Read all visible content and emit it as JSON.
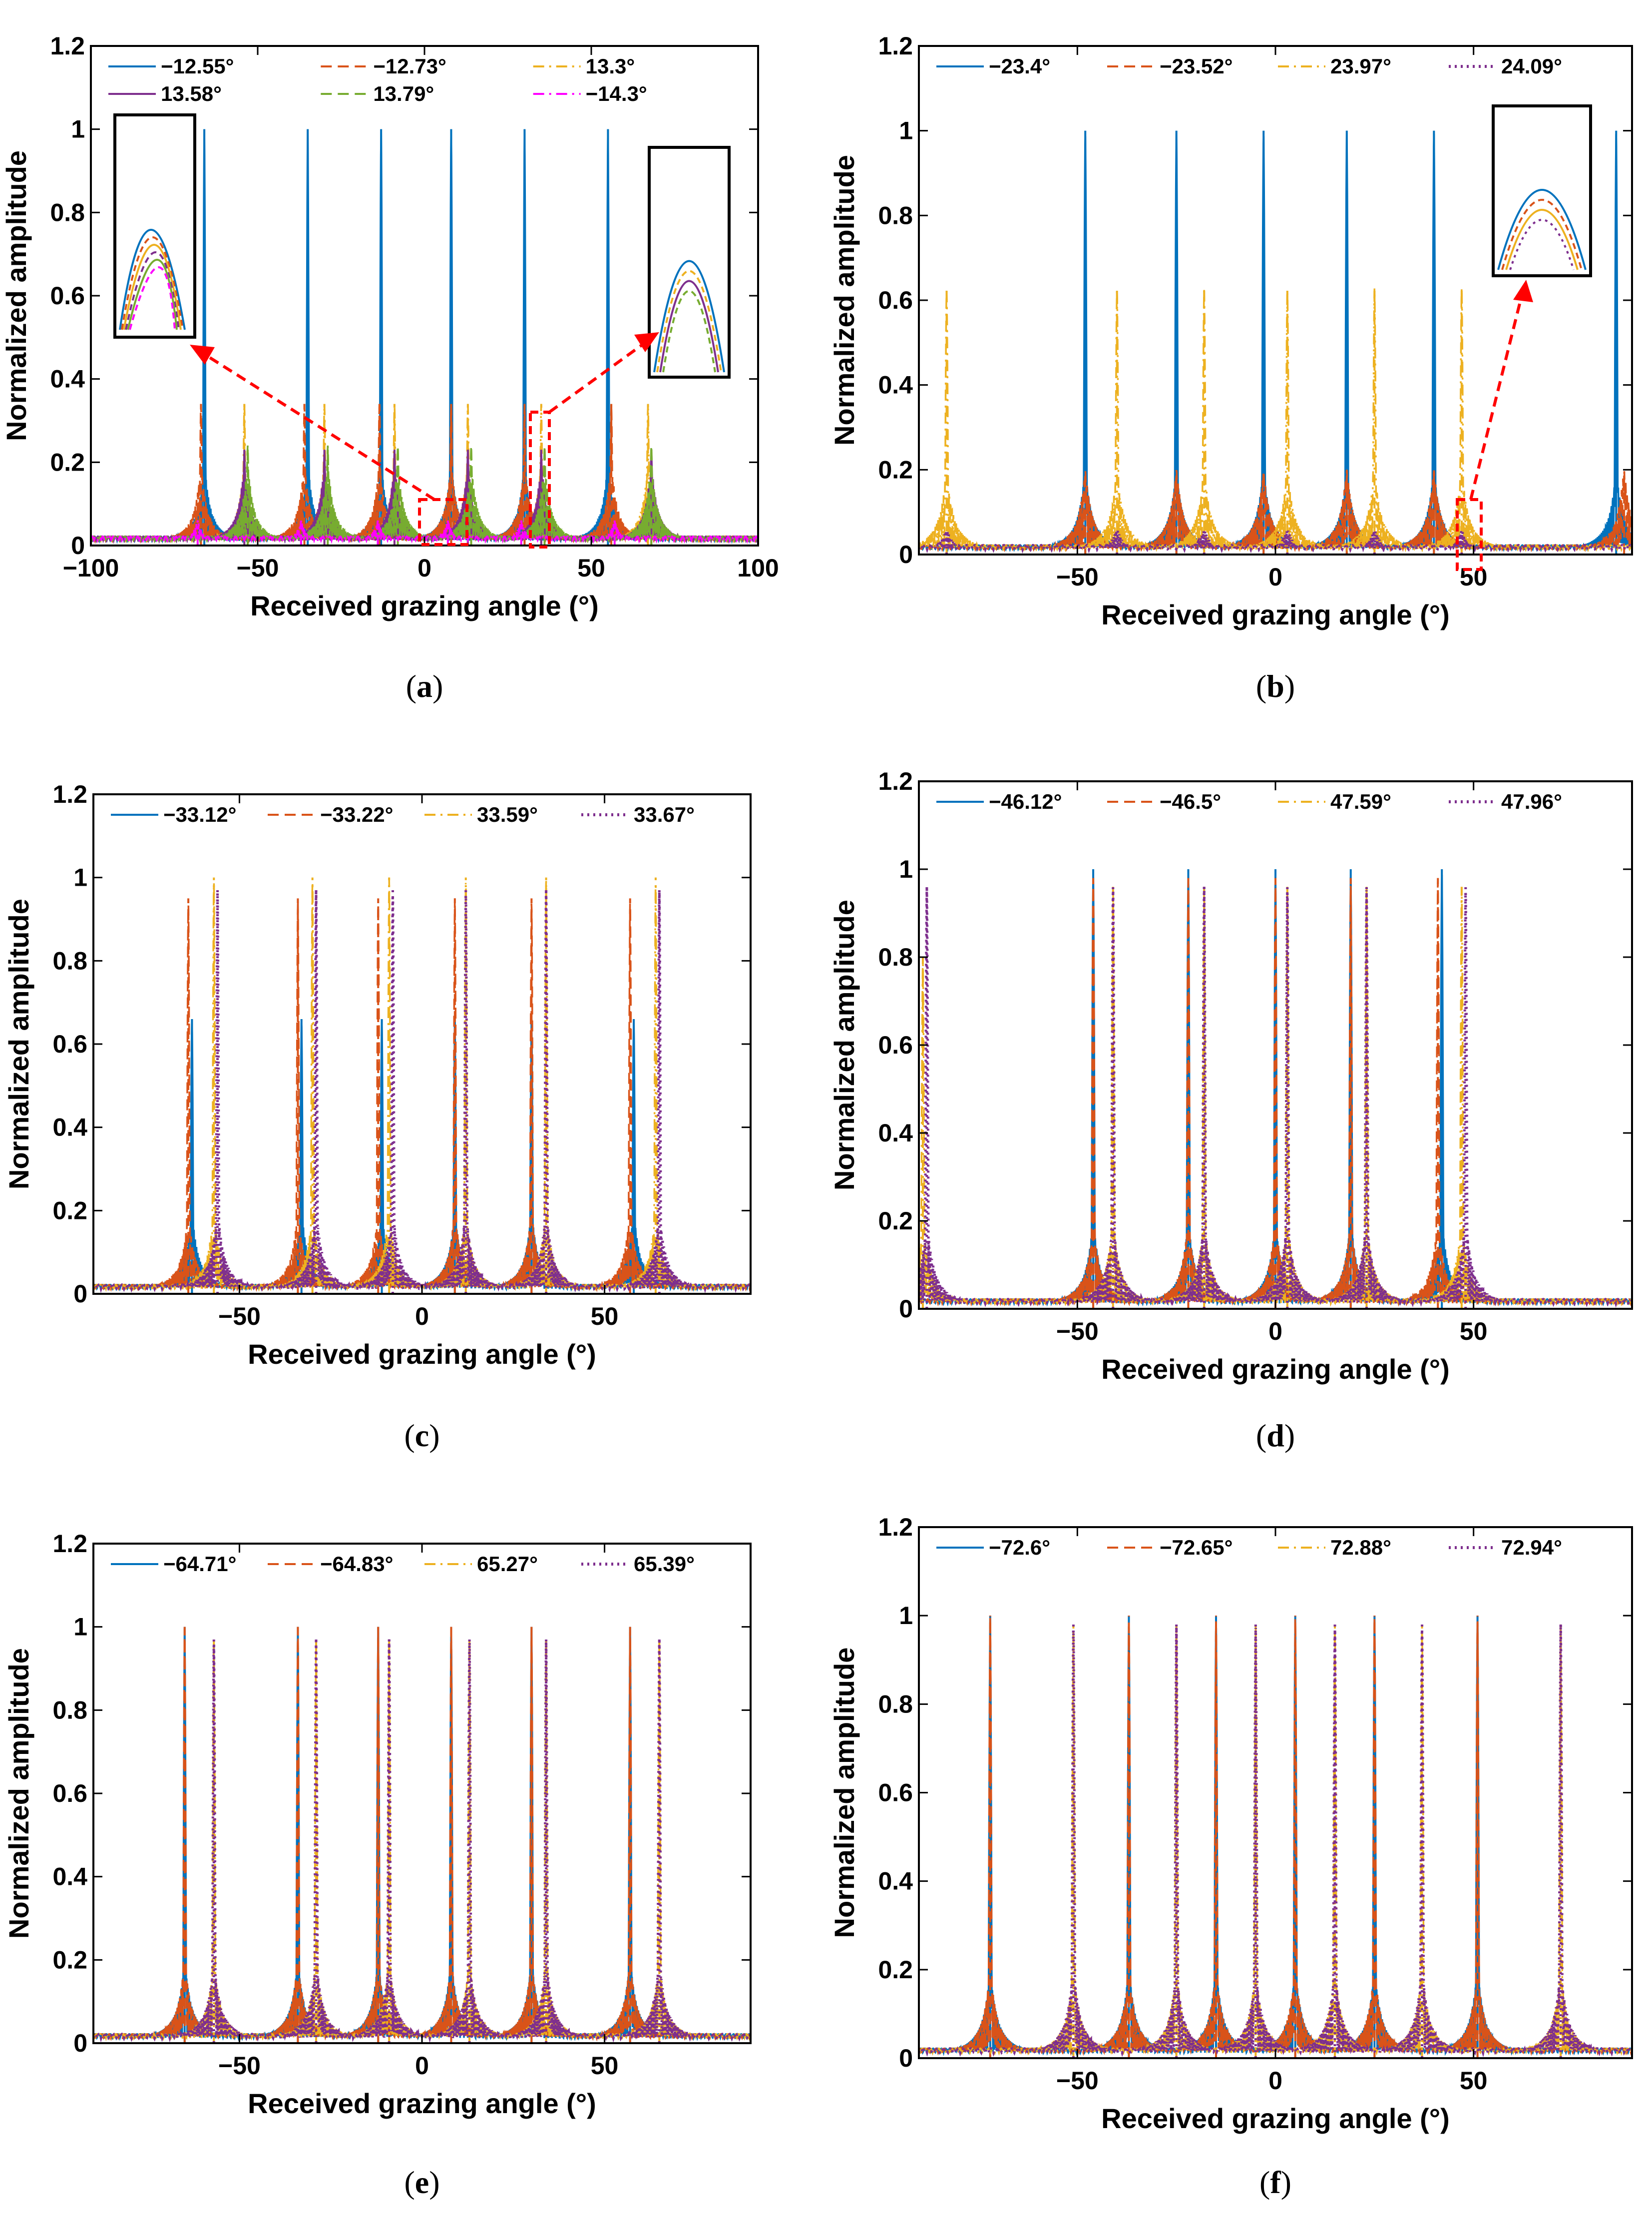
{
  "figure": {
    "panel_order": [
      "a",
      "b",
      "c",
      "d",
      "e",
      "f"
    ]
  },
  "chart_data": [
    {
      "id": "a",
      "type": "line",
      "caption": "a",
      "xlabel": "Received grazing angle (°)",
      "ylabel": "Normalized amplitude",
      "xlim": [
        -100,
        100
      ],
      "ylim": [
        0,
        1.2
      ],
      "xticks": [
        -100,
        -50,
        0,
        50,
        100
      ],
      "xtick_labels": [
        "−100",
        "−50",
        "0",
        "50",
        "100"
      ],
      "yticks": [
        0,
        0.2,
        0.4,
        0.6,
        0.8,
        1,
        1.2
      ],
      "ytick_labels": [
        "0",
        "0.2",
        "0.4",
        "0.6",
        "0.8",
        "1",
        "1.2"
      ],
      "legend_rows": 2,
      "series": [
        {
          "name": "−12.55°",
          "color": "#0072BD",
          "style": "solid",
          "peaks": [
            -66,
            -35,
            -13,
            8,
            30,
            55
          ],
          "peak_values": [
            1,
            1,
            1,
            1,
            1,
            1
          ]
        },
        {
          "name": "−12.73°",
          "color": "#D95319",
          "style": "dash",
          "peaks": [
            -67,
            -36,
            -13.5,
            8,
            30,
            56
          ],
          "peak_values": [
            0.34,
            0.34,
            0.34,
            0.34,
            0.34,
            0.34
          ]
        },
        {
          "name": "13.3°",
          "color": "#EDB120",
          "style": "dashdot",
          "peaks": [
            -54,
            -30,
            -9,
            13,
            35,
            67
          ],
          "peak_values": [
            0.34,
            0.34,
            0.34,
            0.34,
            0.34,
            0.34
          ]
        },
        {
          "name": "13.58°",
          "color": "#7E2F8E",
          "style": "solid",
          "peaks": [
            -54,
            -30,
            -9,
            13,
            35,
            68
          ],
          "peak_values": [
            0.23,
            0.23,
            0.23,
            0.23,
            0.23,
            0.23
          ]
        },
        {
          "name": "13.79°",
          "color": "#77AC30",
          "style": "dash",
          "peaks": [
            -53,
            -29,
            -8,
            14,
            36,
            68
          ],
          "peak_values": [
            0.24,
            0.24,
            0.24,
            0.24,
            0.24,
            0.24
          ]
        },
        {
          "name": "−14.3°",
          "color": "#FF00FF",
          "style": "dashdot",
          "peaks": [
            -68,
            -37,
            -14,
            7,
            29,
            57
          ],
          "peak_values": [
            0.06,
            0.06,
            0.06,
            0.06,
            0.06,
            0.06
          ]
        }
      ],
      "annotations": [
        "zoom inset near 0–10°",
        "zoom inset near 30–38°"
      ]
    },
    {
      "id": "b",
      "type": "line",
      "caption": "b",
      "xlabel": "Received grazing angle (°)",
      "ylabel": "Normalized amplitude",
      "xlim": [
        -90,
        90
      ],
      "ylim": [
        0,
        1.2
      ],
      "xticks": [
        -50,
        0,
        50
      ],
      "xtick_labels": [
        "−50",
        "0",
        "50"
      ],
      "yticks": [
        0,
        0.2,
        0.4,
        0.6,
        0.8,
        1,
        1.2
      ],
      "ytick_labels": [
        "0",
        "0.2",
        "0.4",
        "0.6",
        "0.8",
        "1",
        "1.2"
      ],
      "legend_rows": 1,
      "series": [
        {
          "name": "−23.4°",
          "color": "#0072BD",
          "style": "solid",
          "peaks": [
            -48,
            -25,
            -3,
            18,
            40,
            86
          ],
          "peak_values": [
            1,
            1,
            1,
            1,
            1,
            1
          ]
        },
        {
          "name": "−23.52°",
          "color": "#D95319",
          "style": "dash",
          "peaks": [
            -48,
            -25,
            -3,
            18,
            40,
            88
          ],
          "peak_values": [
            0.2,
            0.2,
            0.2,
            0.2,
            0.2,
            0.19
          ]
        },
        {
          "name": "23.97°",
          "color": "#EDB120",
          "style": "dashdot",
          "peaks": [
            -83,
            -40,
            -18,
            3,
            25,
            47
          ],
          "peak_values": [
            0.63,
            0.63,
            0.63,
            0.63,
            0.63,
            0.63
          ]
        },
        {
          "name": "24.09°",
          "color": "#7E2F8E",
          "style": "dotted",
          "peaks": [
            -83,
            -40,
            -18,
            3,
            25,
            47
          ],
          "peak_values": [
            0.02,
            0.02,
            0.02,
            0.02,
            0.02,
            0.02
          ]
        }
      ],
      "annotations": [
        "zoom inset near 45–50°"
      ]
    },
    {
      "id": "c",
      "type": "line",
      "caption": "c",
      "xlabel": "Received grazing angle (°)",
      "ylabel": "Normalized amplitude",
      "xlim": [
        -90,
        90
      ],
      "ylim": [
        0,
        1.2
      ],
      "xticks": [
        -50,
        0,
        50
      ],
      "xtick_labels": [
        "−50",
        "0",
        "50"
      ],
      "yticks": [
        0,
        0.2,
        0.4,
        0.6,
        0.8,
        1,
        1.2
      ],
      "ytick_labels": [
        "0",
        "0.2",
        "0.4",
        "0.6",
        "0.8",
        "1",
        "1.2"
      ],
      "legend_rows": 1,
      "series": [
        {
          "name": "−33.12°",
          "color": "#0072BD",
          "style": "solid",
          "peaks": [
            -63,
            -33,
            -11,
            9,
            30,
            58
          ],
          "peak_values": [
            0.66,
            0.66,
            0.66,
            0.66,
            0.66,
            0.66
          ]
        },
        {
          "name": "−33.22°",
          "color": "#D95319",
          "style": "dash",
          "peaks": [
            -64,
            -34,
            -12,
            9,
            30,
            57
          ],
          "peak_values": [
            0.95,
            0.95,
            0.95,
            0.95,
            0.95,
            0.95
          ]
        },
        {
          "name": "33.59°",
          "color": "#EDB120",
          "style": "dashdot",
          "peaks": [
            -57,
            -30,
            -9,
            12,
            34,
            64
          ],
          "peak_values": [
            1,
            1,
            1,
            1,
            1,
            1
          ]
        },
        {
          "name": "33.67°",
          "color": "#7E2F8E",
          "style": "dotted",
          "peaks": [
            -56,
            -29,
            -8,
            12,
            34,
            65
          ],
          "peak_values": [
            0.97,
            0.97,
            0.97,
            0.97,
            0.97,
            0.97
          ]
        }
      ]
    },
    {
      "id": "d",
      "type": "line",
      "caption": "d",
      "xlabel": "Received grazing angle (°)",
      "ylabel": "Normalized amplitude",
      "xlim": [
        -90,
        90
      ],
      "ylim": [
        0,
        1.2
      ],
      "xticks": [
        -50,
        0,
        50
      ],
      "xtick_labels": [
        "−50",
        "0",
        "50"
      ],
      "yticks": [
        0,
        0.2,
        0.4,
        0.6,
        0.8,
        1,
        1.2
      ],
      "ytick_labels": [
        "0",
        "0.2",
        "0.4",
        "0.6",
        "0.8",
        "1",
        "1.2"
      ],
      "legend_rows": 1,
      "series": [
        {
          "name": "−46.12°",
          "color": "#0072BD",
          "style": "solid",
          "peaks": [
            -46,
            -22,
            0,
            19,
            42
          ],
          "peak_values": [
            1,
            1,
            1,
            1,
            1
          ]
        },
        {
          "name": "−46.5°",
          "color": "#D95319",
          "style": "dash",
          "peaks": [
            -46,
            -22,
            0,
            19,
            41
          ],
          "peak_values": [
            0.98,
            0.98,
            0.98,
            0.98,
            0.98
          ]
        },
        {
          "name": "47.59°",
          "color": "#EDB120",
          "style": "dashdot",
          "peaks": [
            -89,
            -41,
            -18,
            3,
            23,
            47
          ],
          "peak_values": [
            0.8,
            0.96,
            0.96,
            0.96,
            0.96,
            0.96
          ]
        },
        {
          "name": "47.96°",
          "color": "#7E2F8E",
          "style": "dotted",
          "peaks": [
            -88,
            -41,
            -18,
            3,
            23,
            48
          ],
          "peak_values": [
            0.96,
            0.96,
            0.96,
            0.96,
            0.96,
            0.96
          ]
        }
      ]
    },
    {
      "id": "e",
      "type": "line",
      "caption": "e",
      "xlabel": "Received grazing angle (°)",
      "ylabel": "Normalized amplitude",
      "xlim": [
        -90,
        90
      ],
      "ylim": [
        0,
        1.2
      ],
      "xticks": [
        -50,
        0,
        50
      ],
      "xtick_labels": [
        "−50",
        "0",
        "50"
      ],
      "yticks": [
        0,
        0.2,
        0.4,
        0.6,
        0.8,
        1,
        1.2
      ],
      "ytick_labels": [
        "0",
        "0.2",
        "0.4",
        "0.6",
        "0.8",
        "1",
        "1.2"
      ],
      "legend_rows": 1,
      "series": [
        {
          "name": "−64.71°",
          "color": "#0072BD",
          "style": "solid",
          "peaks": [
            -65,
            -34,
            -12,
            8,
            30,
            57
          ],
          "peak_values": [
            1,
            1,
            1,
            1,
            1,
            1
          ]
        },
        {
          "name": "−64.83°",
          "color": "#D95319",
          "style": "dash",
          "peaks": [
            -65,
            -34,
            -12,
            8,
            30,
            57
          ],
          "peak_values": [
            1,
            1,
            1,
            1,
            1,
            1
          ]
        },
        {
          "name": "65.27°",
          "color": "#EDB120",
          "style": "dashdot",
          "peaks": [
            -57,
            -29,
            -9,
            13,
            34,
            65
          ],
          "peak_values": [
            0.97,
            0.97,
            0.97,
            0.97,
            0.97,
            0.97
          ]
        },
        {
          "name": "65.39°",
          "color": "#7E2F8E",
          "style": "dotted",
          "peaks": [
            -57,
            -29,
            -9,
            13,
            34,
            65
          ],
          "peak_values": [
            0.97,
            0.97,
            0.97,
            0.97,
            0.97,
            0.97
          ]
        }
      ]
    },
    {
      "id": "f",
      "type": "line",
      "caption": "f",
      "xlabel": "Received grazing angle (°)",
      "ylabel": "Normalized amplitude",
      "xlim": [
        -90,
        90
      ],
      "ylim": [
        0,
        1.2
      ],
      "xticks": [
        -50,
        0,
        50
      ],
      "xtick_labels": [
        "−50",
        "0",
        "50"
      ],
      "yticks": [
        0,
        0.2,
        0.4,
        0.6,
        0.8,
        1,
        1.2
      ],
      "ytick_labels": [
        "0",
        "0.2",
        "0.4",
        "0.6",
        "0.8",
        "1",
        "1.2"
      ],
      "legend_rows": 1,
      "series": [
        {
          "name": "−72.6°",
          "color": "#0072BD",
          "style": "solid",
          "peaks": [
            -72,
            -37,
            -15,
            5,
            25,
            51
          ],
          "peak_values": [
            1,
            1,
            1,
            1,
            1,
            1
          ]
        },
        {
          "name": "−72.65°",
          "color": "#D95319",
          "style": "dash",
          "peaks": [
            -72,
            -37,
            -15,
            5,
            25,
            51
          ],
          "peak_values": [
            1,
            1,
            1,
            1,
            1,
            1
          ]
        },
        {
          "name": "72.88°",
          "color": "#EDB120",
          "style": "dashdot",
          "peaks": [
            -51,
            -25,
            -5,
            15,
            37,
            72
          ],
          "peak_values": [
            0.98,
            0.98,
            0.98,
            0.98,
            0.98,
            0.98
          ]
        },
        {
          "name": "72.94°",
          "color": "#7E2F8E",
          "style": "dotted",
          "peaks": [
            -51,
            -25,
            -5,
            15,
            37,
            72
          ],
          "peak_values": [
            0.98,
            0.98,
            0.98,
            0.98,
            0.98,
            0.98
          ]
        }
      ]
    }
  ]
}
